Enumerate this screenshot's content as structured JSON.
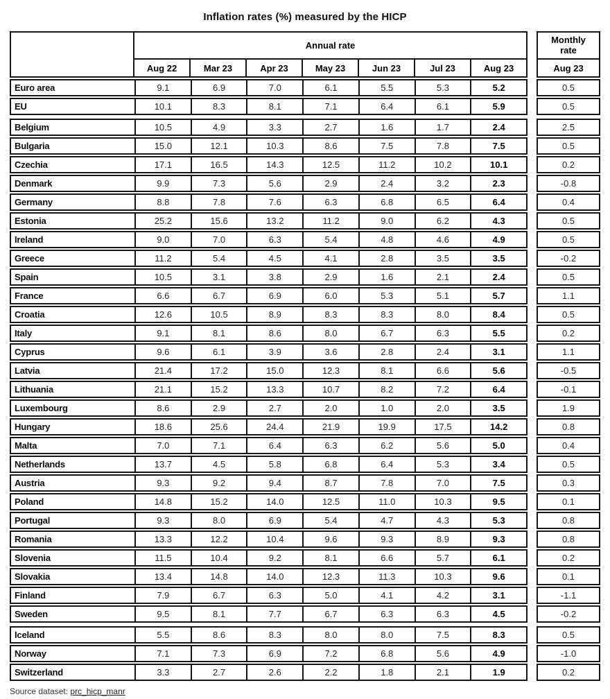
{
  "title": "Inflation rates (%) measured by the HICP",
  "colors": {
    "border": "#151515",
    "text": "#262626",
    "background": "#ffffff"
  },
  "chart_data": {
    "type": "table",
    "title": "Inflation rates (%) measured by the HICP",
    "column_groups": {
      "annual": "Annual rate",
      "monthly": "Monthly rate"
    },
    "annual_columns": [
      "Aug 22",
      "Mar 23",
      "Apr 23",
      "May 23",
      "Jun 23",
      "Jul 23",
      "Aug 23"
    ],
    "monthly_column": "Aug 23",
    "rows": [
      {
        "name": "Euro area",
        "annual": [
          "9.1",
          "6.9",
          "7.0",
          "6.1",
          "5.5",
          "5.3",
          "5.2"
        ],
        "monthly": "0.5"
      },
      {
        "name": "EU",
        "annual": [
          "10.1",
          "8.3",
          "8.1",
          "7.1",
          "6.4",
          "6.1",
          "5.9"
        ],
        "monthly": "0.5"
      },
      {
        "name": "Belgium",
        "annual": [
          "10.5",
          "4.9",
          "3.3",
          "2.7",
          "1.6",
          "1.7",
          "2.4"
        ],
        "monthly": "2.5",
        "group_start": true
      },
      {
        "name": "Bulgaria",
        "annual": [
          "15.0",
          "12.1",
          "10.3",
          "8.6",
          "7.5",
          "7.8",
          "7.5"
        ],
        "monthly": "0.5"
      },
      {
        "name": "Czechia",
        "annual": [
          "17.1",
          "16.5",
          "14.3",
          "12.5",
          "11.2",
          "10.2",
          "10.1"
        ],
        "monthly": "0.2"
      },
      {
        "name": "Denmark",
        "annual": [
          "9.9",
          "7.3",
          "5.6",
          "2.9",
          "2.4",
          "3.2",
          "2.3"
        ],
        "monthly": "-0.8"
      },
      {
        "name": "Germany",
        "annual": [
          "8.8",
          "7.8",
          "7.6",
          "6.3",
          "6.8",
          "6.5",
          "6.4"
        ],
        "monthly": "0.4"
      },
      {
        "name": "Estonia",
        "annual": [
          "25.2",
          "15.6",
          "13.2",
          "11.2",
          "9.0",
          "6.2",
          "4.3"
        ],
        "monthly": "0.5"
      },
      {
        "name": "Ireland",
        "annual": [
          "9.0",
          "7.0",
          "6.3",
          "5.4",
          "4.8",
          "4.6",
          "4.9"
        ],
        "monthly": "0.5"
      },
      {
        "name": "Greece",
        "annual": [
          "11.2",
          "5.4",
          "4.5",
          "4.1",
          "2.8",
          "3.5",
          "3.5"
        ],
        "monthly": "-0.2"
      },
      {
        "name": "Spain",
        "annual": [
          "10.5",
          "3.1",
          "3.8",
          "2.9",
          "1.6",
          "2.1",
          "2.4"
        ],
        "monthly": "0.5"
      },
      {
        "name": "France",
        "annual": [
          "6.6",
          "6.7",
          "6.9",
          "6.0",
          "5.3",
          "5.1",
          "5.7"
        ],
        "monthly": "1.1"
      },
      {
        "name": "Croatia",
        "annual": [
          "12.6",
          "10.5",
          "8.9",
          "8.3",
          "8.3",
          "8.0",
          "8.4"
        ],
        "monthly": "0.5"
      },
      {
        "name": "Italy",
        "annual": [
          "9.1",
          "8.1",
          "8.6",
          "8.0",
          "6.7",
          "6.3",
          "5.5"
        ],
        "monthly": "0.2"
      },
      {
        "name": "Cyprus",
        "annual": [
          "9.6",
          "6.1",
          "3.9",
          "3.6",
          "2.8",
          "2.4",
          "3.1"
        ],
        "monthly": "1.1"
      },
      {
        "name": "Latvia",
        "annual": [
          "21.4",
          "17.2",
          "15.0",
          "12.3",
          "8.1",
          "6.6",
          "5.6"
        ],
        "monthly": "-0.5"
      },
      {
        "name": "Lithuania",
        "annual": [
          "21.1",
          "15.2",
          "13.3",
          "10.7",
          "8.2",
          "7.2",
          "6.4"
        ],
        "monthly": "-0.1"
      },
      {
        "name": "Luxembourg",
        "annual": [
          "8.6",
          "2.9",
          "2.7",
          "2.0",
          "1.0",
          "2.0",
          "3.5"
        ],
        "monthly": "1.9"
      },
      {
        "name": "Hungary",
        "annual": [
          "18.6",
          "25.6",
          "24.4",
          "21.9",
          "19.9",
          "17.5",
          "14.2"
        ],
        "monthly": "0.8"
      },
      {
        "name": "Malta",
        "annual": [
          "7.0",
          "7.1",
          "6.4",
          "6.3",
          "6.2",
          "5.6",
          "5.0"
        ],
        "monthly": "0.4"
      },
      {
        "name": "Netherlands",
        "annual": [
          "13.7",
          "4.5",
          "5.8",
          "6.8",
          "6.4",
          "5.3",
          "3.4"
        ],
        "monthly": "0.5"
      },
      {
        "name": "Austria",
        "annual": [
          "9.3",
          "9.2",
          "9.4",
          "8.7",
          "7.8",
          "7.0",
          "7.5"
        ],
        "monthly": "0.3"
      },
      {
        "name": "Poland",
        "annual": [
          "14.8",
          "15.2",
          "14.0",
          "12.5",
          "11.0",
          "10.3",
          "9.5"
        ],
        "monthly": "0.1"
      },
      {
        "name": "Portugal",
        "annual": [
          "9.3",
          "8.0",
          "6.9",
          "5.4",
          "4.7",
          "4.3",
          "5.3"
        ],
        "monthly": "0.8"
      },
      {
        "name": "Romania",
        "annual": [
          "13.3",
          "12.2",
          "10.4",
          "9.6",
          "9.3",
          "8.9",
          "9.3"
        ],
        "monthly": "0.8"
      },
      {
        "name": "Slovenia",
        "annual": [
          "11.5",
          "10.4",
          "9.2",
          "8.1",
          "6.6",
          "5.7",
          "6.1"
        ],
        "monthly": "0.2"
      },
      {
        "name": "Slovakia",
        "annual": [
          "13.4",
          "14.8",
          "14.0",
          "12.3",
          "11.3",
          "10.3",
          "9.6"
        ],
        "monthly": "0.1"
      },
      {
        "name": "Finland",
        "annual": [
          "7.9",
          "6.7",
          "6.3",
          "5.0",
          "4.1",
          "4.2",
          "3.1"
        ],
        "monthly": "-1.1"
      },
      {
        "name": "Sweden",
        "annual": [
          "9.5",
          "8.1",
          "7.7",
          "6.7",
          "6.3",
          "6.3",
          "4.5"
        ],
        "monthly": "-0.2"
      },
      {
        "name": "Iceland",
        "annual": [
          "5.5",
          "8.6",
          "8.3",
          "8.0",
          "8.0",
          "7.5",
          "8.3"
        ],
        "monthly": "0.5",
        "group_start": true
      },
      {
        "name": "Norway",
        "annual": [
          "7.1",
          "7.3",
          "6.9",
          "7.2",
          "6.8",
          "5.6",
          "4.9"
        ],
        "monthly": "-1.0"
      },
      {
        "name": "Switzerland",
        "annual": [
          "3.3",
          "2.7",
          "2.6",
          "2.2",
          "1.8",
          "2.1",
          "1.9"
        ],
        "monthly": "0.2"
      }
    ]
  },
  "footer": {
    "prefix": "Source dataset: ",
    "link_text": "prc_hicp_manr"
  }
}
